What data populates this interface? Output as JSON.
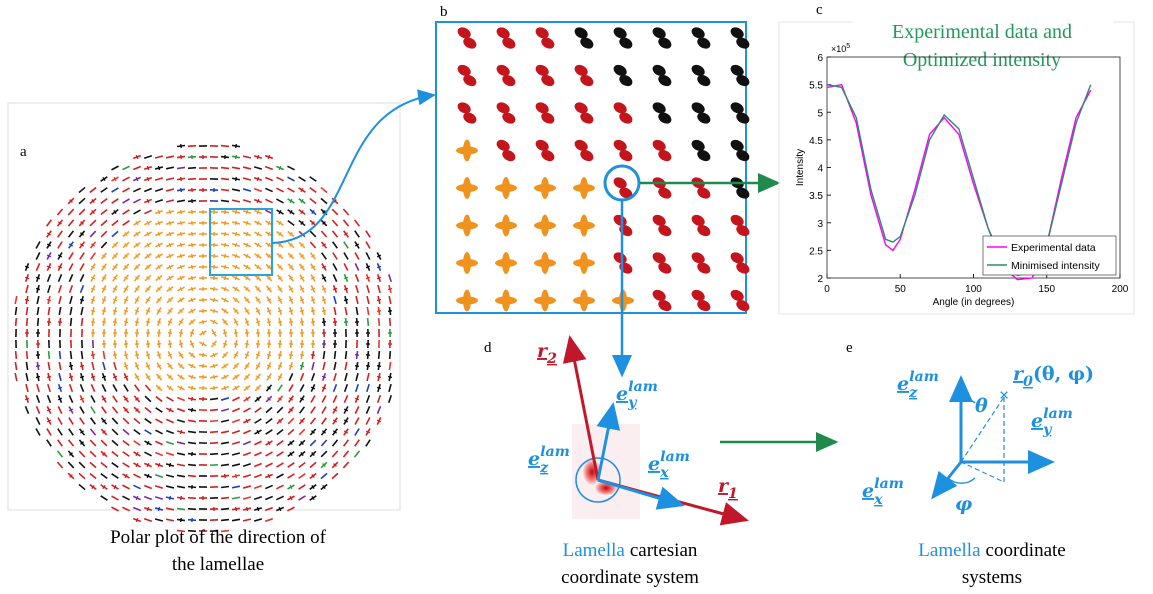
{
  "panel_labels": {
    "a": "a",
    "b": "b",
    "c": "c",
    "d": "d",
    "e": "e"
  },
  "panel_a": {
    "caption": [
      "Polar plot of the direction of",
      "the lamellae"
    ]
  },
  "panel_d": {
    "labels": {
      "r2": {
        "base": "r",
        "sub": "2"
      },
      "ey": {
        "base": "e",
        "sub": "y",
        "sup": "lam"
      },
      "ez": {
        "base": "e",
        "sub": "z",
        "sup": "lam"
      },
      "ex": {
        "base": "e",
        "sub": "x",
        "sup": "lam"
      },
      "r1": {
        "base": "r",
        "sub": "1"
      }
    },
    "caption": {
      "highlight": "Lamella",
      "rest": "cartesian",
      "line2": "coordinate system"
    }
  },
  "panel_e": {
    "labels": {
      "ez": {
        "base": "e",
        "sub": "z",
        "sup": "lam"
      },
      "theta": "θ",
      "r0": {
        "base": "r",
        "sub": "0",
        "rest": "(θ, φ)"
      },
      "ey": {
        "base": "e",
        "sub": "y",
        "sup": "lam"
      },
      "ex": {
        "base": "e",
        "sub": "x",
        "sup": "lam"
      },
      "phi": "φ"
    },
    "caption": {
      "highlight": "Lamella",
      "rest": "coordinate",
      "line2": "systems"
    }
  },
  "chart_data": {
    "type": "line",
    "title": [
      "Experimental data and",
      "Optimized intensity"
    ],
    "x_label": "Angle (in degrees)",
    "y_label": "Intensity",
    "y_multiplier": {
      "base": "×10",
      "exponent": "5"
    },
    "x": [
      0,
      10,
      20,
      30,
      40,
      45,
      50,
      60,
      70,
      80,
      90,
      100,
      110,
      120,
      130,
      140,
      150,
      160,
      170,
      180
    ],
    "series": [
      {
        "name": "Experimental data",
        "color": "#ff00ff",
        "values": [
          5.45,
          5.5,
          4.8,
          3.5,
          2.6,
          2.5,
          2.7,
          3.6,
          4.6,
          4.9,
          4.6,
          3.7,
          2.9,
          2.2,
          1.97,
          2.0,
          2.6,
          3.8,
          4.9,
          5.4
        ]
      },
      {
        "name": "Minimised intensity",
        "color": "#2e8b6e",
        "values": [
          5.5,
          5.45,
          4.9,
          3.6,
          2.7,
          2.65,
          2.75,
          3.5,
          4.5,
          4.95,
          4.7,
          3.8,
          2.9,
          2.3,
          2.05,
          2.1,
          2.6,
          3.7,
          4.8,
          5.5
        ]
      }
    ],
    "xlim": [
      0,
      200
    ],
    "ylim": [
      2,
      6
    ],
    "xticks": [
      0,
      50,
      100,
      150,
      200
    ],
    "yticks": [
      2,
      2.5,
      3,
      3.5,
      4,
      4.5,
      5,
      5.5,
      6
    ],
    "legend": "lower right",
    "grid": false
  }
}
